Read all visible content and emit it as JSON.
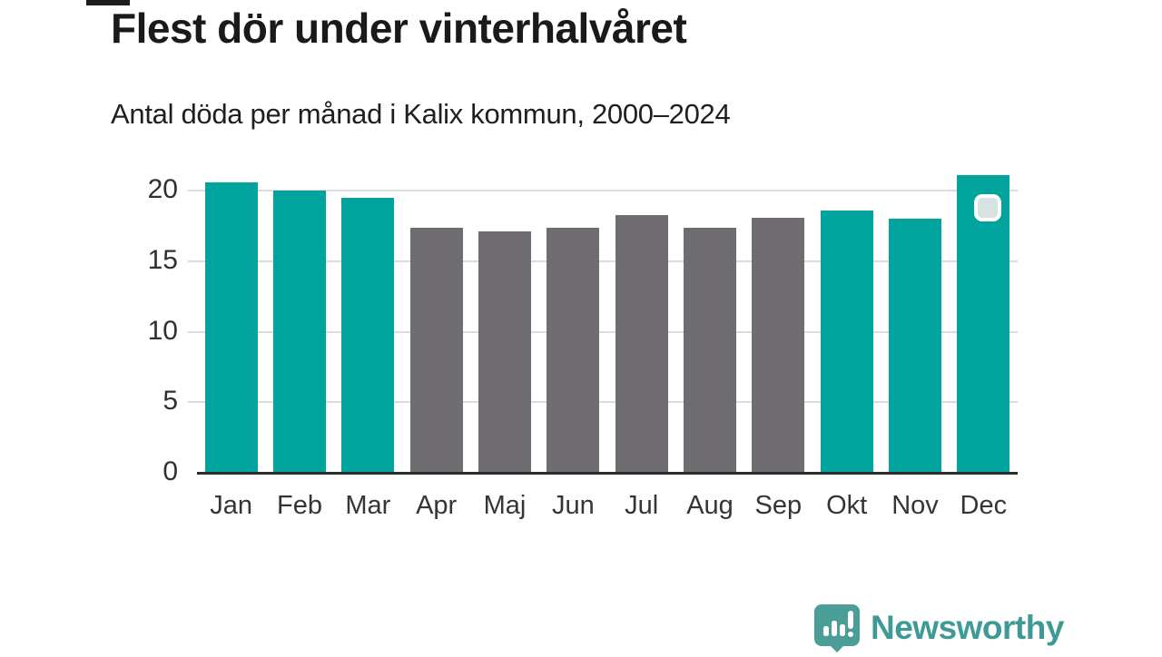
{
  "title": "Flest dör under vinterhalvåret",
  "subtitle": "Antal döda per månad i Kalix kommun, 2000–2024",
  "chart_data": {
    "type": "bar",
    "categories": [
      "Jan",
      "Feb",
      "Mar",
      "Apr",
      "Maj",
      "Jun",
      "Jul",
      "Aug",
      "Sep",
      "Okt",
      "Nov",
      "Dec"
    ],
    "values": [
      20.6,
      20.0,
      19.5,
      17.4,
      17.1,
      17.4,
      18.3,
      17.4,
      18.1,
      18.6,
      18.0,
      21.1
    ],
    "groups": [
      "winter",
      "winter",
      "winter",
      "summer",
      "summer",
      "summer",
      "summer",
      "summer",
      "summer",
      "winter",
      "winter",
      "winter"
    ],
    "palette": {
      "winter": "#00a49c",
      "summer": "#6f6d71"
    },
    "yticks": [
      0,
      5,
      10,
      15,
      20
    ],
    "ylim": [
      0,
      21.5
    ],
    "xlabel": "",
    "ylabel": "",
    "grid": true,
    "gridline_color": "#dcdcdc",
    "axis_line_color": "#2b2b2b",
    "highlight": {
      "category": "Dec",
      "marker": "rounded-square",
      "marker_fill": "#d7e3e1",
      "marker_border": "#ffffff"
    }
  },
  "footer": {
    "brand": "Newsworthy",
    "brand_color": "#3e9a94",
    "logo_color": "#4a9e97"
  }
}
